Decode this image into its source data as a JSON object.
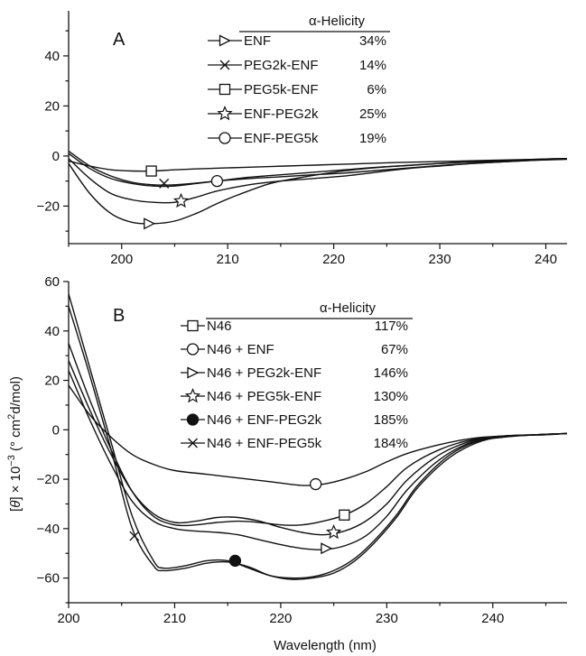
{
  "figure": {
    "xlabel": "Wavelength (nm)",
    "ylabel_parts": {
      "pre": "[",
      "theta": "θ",
      "post": "] × 10",
      "exp": "−3",
      "unit_pre": " (° cm",
      "unit_exp": "2",
      "unit_post": "d/mol)"
    }
  },
  "chart_data": [
    {
      "type": "line",
      "panel_label": "A",
      "legend_header": "α-Helicity",
      "xlim": [
        195,
        242
      ],
      "ylim": [
        -35,
        58
      ],
      "xticks": [
        200,
        210,
        220,
        230,
        240
      ],
      "yticks": [
        -20,
        0,
        20,
        40
      ],
      "grid": false,
      "legend_position": "top-center",
      "series": [
        {
          "name": "ENF",
          "value_label": "34%",
          "marker": "triangle-right",
          "x": [
            195,
            197,
            199,
            201,
            203,
            205,
            207,
            209,
            211,
            214,
            217,
            220,
            223,
            226,
            229,
            232,
            235,
            238,
            240,
            242
          ],
          "y": [
            -3,
            -15,
            -23,
            -26.5,
            -27,
            -26,
            -23,
            -19,
            -15.5,
            -11,
            -8.5,
            -6.5,
            -5,
            -4,
            -3.2,
            -2.5,
            -2,
            -1.5,
            -1.2,
            -1
          ],
          "marker_at": [
            202.6,
            -27
          ]
        },
        {
          "name": "PEG2k-ENF",
          "value_label": "14%",
          "marker": "x",
          "x": [
            195,
            197,
            199,
            201,
            203,
            205,
            207,
            209,
            212,
            215,
            218,
            221,
            224,
            227,
            230,
            233,
            236,
            239,
            242
          ],
          "y": [
            1,
            -5,
            -9,
            -11,
            -12,
            -12,
            -11,
            -10,
            -8.5,
            -7.5,
            -6.5,
            -5.5,
            -4.5,
            -3.8,
            -3,
            -2.4,
            -2,
            -1.6,
            -1.2
          ],
          "marker_at": [
            204,
            -11
          ]
        },
        {
          "name": "PEG5k-ENF",
          "value_label": "6%",
          "marker": "square",
          "x": [
            195,
            197,
            199,
            201,
            203,
            205,
            208,
            211,
            214,
            217,
            220,
            223,
            226,
            229,
            232,
            235,
            238,
            240,
            242
          ],
          "y": [
            -2,
            -4,
            -5.5,
            -6,
            -6,
            -5.5,
            -5,
            -4.6,
            -4.2,
            -3.8,
            -3.4,
            -3,
            -2.6,
            -2.3,
            -2,
            -1.7,
            -1.4,
            -1.2,
            -1
          ],
          "marker_at": [
            202.8,
            -6
          ]
        },
        {
          "name": "ENF-PEG2k",
          "value_label": "25%",
          "marker": "star",
          "x": [
            195,
            197,
            199,
            201,
            203,
            205,
            207,
            209,
            212,
            215,
            218,
            221,
            224,
            227,
            230,
            233,
            236,
            239,
            242
          ],
          "y": [
            -1,
            -9,
            -15,
            -17.5,
            -18.5,
            -18.5,
            -16.5,
            -14,
            -11.5,
            -10,
            -9,
            -8,
            -6.5,
            -5,
            -4,
            -3,
            -2.3,
            -1.7,
            -1.3
          ],
          "marker_at": [
            205.6,
            -18
          ]
        },
        {
          "name": "ENF-PEG5k",
          "value_label": "19%",
          "marker": "circle",
          "x": [
            195,
            197,
            199,
            201,
            203,
            205,
            207,
            209,
            212,
            215,
            218,
            221,
            224,
            227,
            230,
            233,
            236,
            239,
            242
          ],
          "y": [
            2,
            -4,
            -8,
            -10.5,
            -11.5,
            -11.5,
            -10.8,
            -10,
            -9,
            -8.3,
            -7.5,
            -6.8,
            -5.8,
            -4.8,
            -3.8,
            -3,
            -2.3,
            -1.7,
            -1.2
          ],
          "marker_at": [
            209,
            -10
          ]
        }
      ]
    },
    {
      "type": "line",
      "panel_label": "B",
      "legend_header": "α-Helicity",
      "xlim": [
        200,
        247
      ],
      "ylim": [
        -70,
        60
      ],
      "xticks": [
        200,
        210,
        220,
        230,
        240
      ],
      "yticks": [
        -60,
        -40,
        -20,
        0,
        20,
        40,
        60
      ],
      "grid": false,
      "legend_position": "top-center",
      "series": [
        {
          "name": "N46",
          "value_label": "117%",
          "marker": "square",
          "x": [
            200,
            202,
            204,
            206,
            208,
            210,
            212,
            214,
            216,
            218,
            220,
            222,
            224,
            226,
            228,
            230,
            232,
            235,
            238,
            241,
            244,
            247
          ],
          "y": [
            35,
            12,
            -8,
            -25,
            -35,
            -38.5,
            -38.5,
            -37.5,
            -37,
            -37.5,
            -38.5,
            -38.5,
            -37,
            -34.5,
            -30,
            -23,
            -15,
            -8,
            -4,
            -2.5,
            -2,
            -1.5
          ],
          "marker_at": [
            226,
            -34.5
          ]
        },
        {
          "name": "N46 + ENF",
          "value_label": "67%",
          "marker": "circle",
          "x": [
            200,
            202,
            204,
            206,
            208,
            210,
            213,
            216,
            219,
            222,
            224,
            226,
            228,
            230,
            232,
            235,
            238,
            241,
            244,
            247
          ],
          "y": [
            18,
            6,
            -3,
            -10,
            -14,
            -16.5,
            -18,
            -19.5,
            -21,
            -22.5,
            -22,
            -20,
            -17,
            -13,
            -9.5,
            -6,
            -3.5,
            -2.5,
            -2,
            -1.5
          ],
          "marker_at": [
            223.3,
            -22
          ]
        },
        {
          "name": "N46 + PEG2k-ENF",
          "value_label": "146%",
          "marker": "triangle-right",
          "x": [
            200,
            202,
            204,
            206,
            208,
            210,
            212,
            214,
            216,
            218,
            220,
            222,
            224,
            226,
            228,
            230,
            232,
            235,
            238,
            241,
            244,
            247
          ],
          "y": [
            24,
            4,
            -14,
            -29,
            -37,
            -40,
            -41,
            -41.5,
            -42.5,
            -44.5,
            -46.5,
            -48,
            -48.5,
            -47,
            -43,
            -35,
            -24,
            -12,
            -5,
            -3,
            -2,
            -1.5
          ],
          "marker_at": [
            224.3,
            -48
          ]
        },
        {
          "name": "N46 + PEG5k-ENF",
          "value_label": "130%",
          "marker": "star",
          "x": [
            200,
            202,
            204,
            206,
            208,
            210,
            212,
            214,
            216,
            218,
            220,
            222,
            224,
            226,
            228,
            230,
            232,
            235,
            238,
            241,
            244,
            247
          ],
          "y": [
            28,
            8,
            -10,
            -25,
            -34,
            -37.5,
            -37,
            -35.5,
            -35.5,
            -37,
            -39.5,
            -41.5,
            -42.5,
            -41,
            -37,
            -30,
            -20,
            -10,
            -4.5,
            -2.5,
            -2,
            -1.5
          ],
          "marker_at": [
            225,
            -41.5
          ]
        },
        {
          "name": "N46 + ENF-PEG2k",
          "value_label": "185%",
          "marker": "filled-circle",
          "x": [
            200,
            202,
            204,
            206,
            208,
            209,
            211,
            213,
            215,
            217,
            219,
            221,
            223,
            225,
            227,
            229,
            231,
            233,
            236,
            239,
            242,
            245,
            247
          ],
          "y": [
            55,
            25,
            -5,
            -35,
            -53,
            -56,
            -55,
            -53,
            -53,
            -56,
            -59,
            -60,
            -59.5,
            -57,
            -52,
            -44,
            -34,
            -22,
            -10,
            -4,
            -2.5,
            -2,
            -1.5
          ],
          "marker_at": [
            215.7,
            -53
          ]
        },
        {
          "name": "N46 + ENF-PEG5k",
          "value_label": "184%",
          "marker": "x",
          "x": [
            200,
            202,
            204,
            206,
            208,
            209,
            211,
            213,
            215,
            217,
            219,
            221,
            223,
            225,
            227,
            229,
            231,
            233,
            236,
            239,
            242,
            245,
            247
          ],
          "y": [
            50,
            22,
            -8,
            -40,
            -55,
            -57,
            -56,
            -54,
            -53.5,
            -55.5,
            -59,
            -60.5,
            -60,
            -58,
            -53,
            -45,
            -35,
            -23,
            -11,
            -4.5,
            -2.5,
            -2,
            -1.5
          ],
          "marker_at": [
            206.2,
            -43
          ]
        }
      ]
    }
  ]
}
